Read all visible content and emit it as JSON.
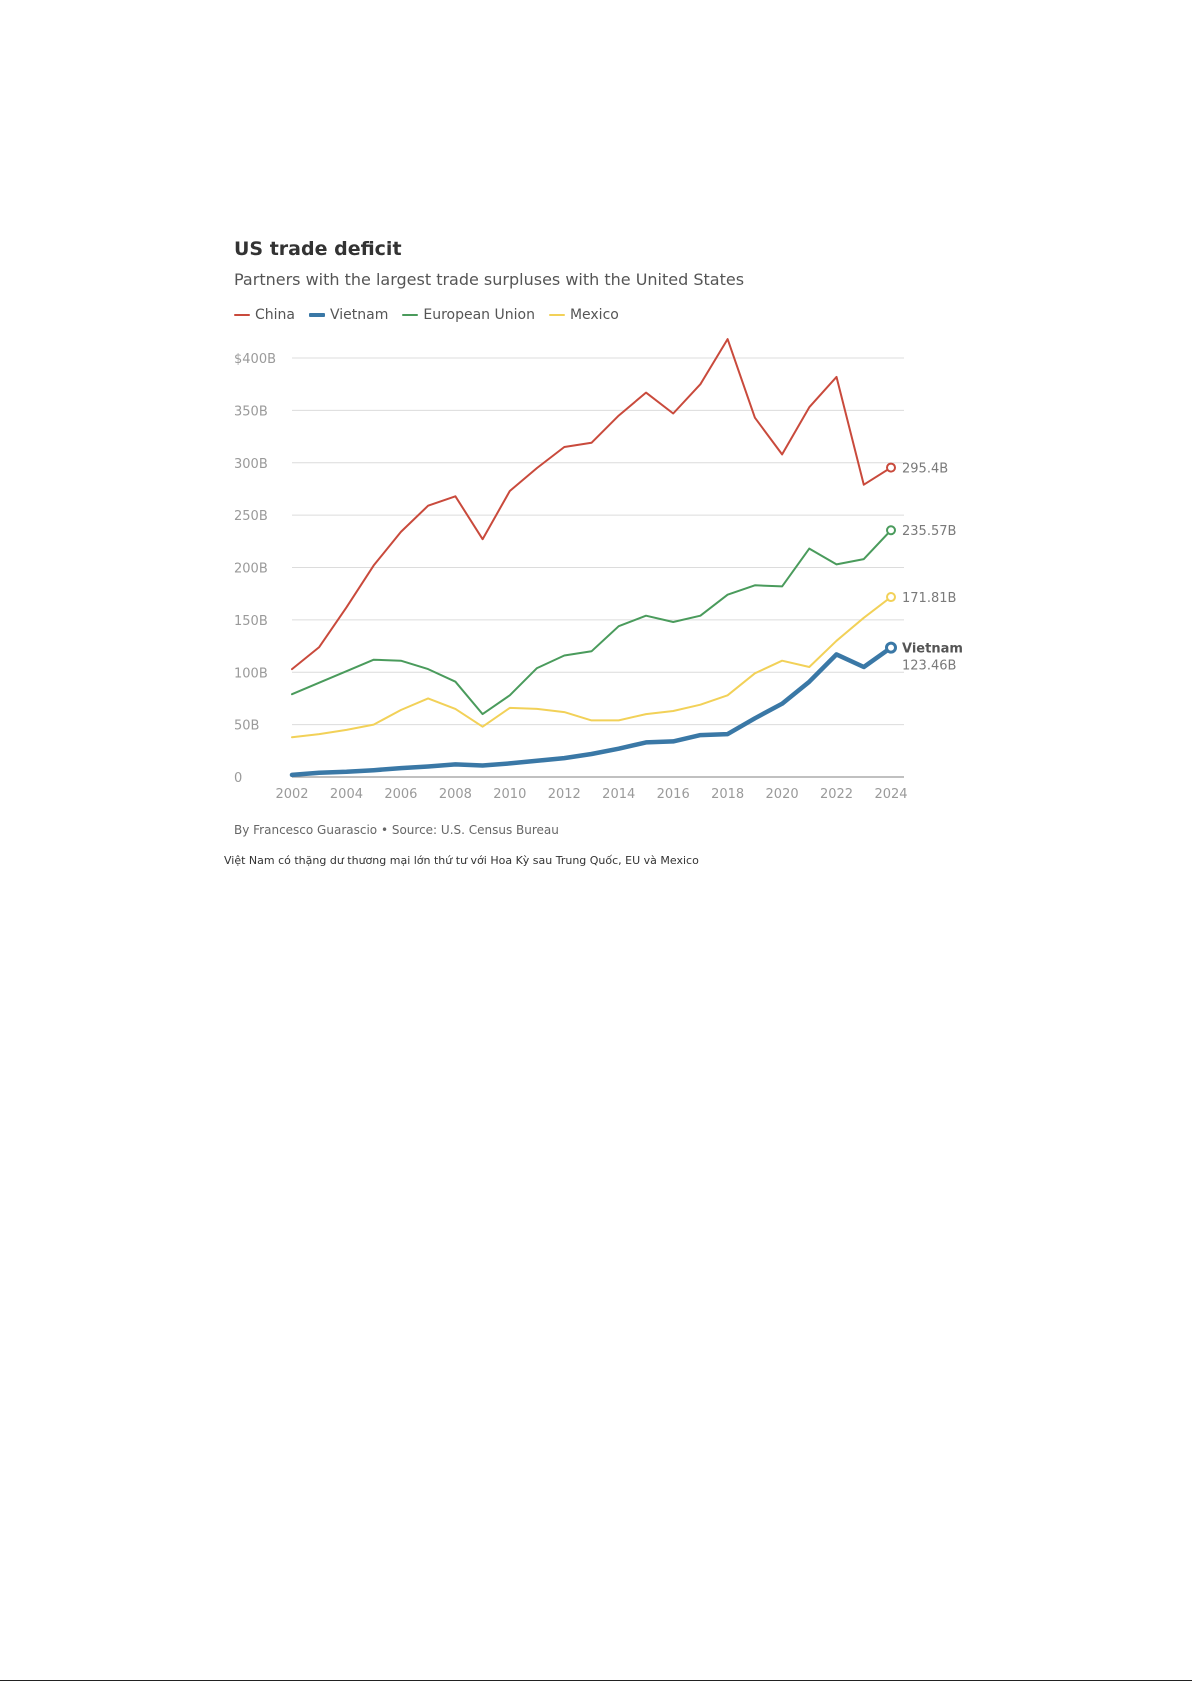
{
  "chart_data": {
    "type": "line",
    "title": "US trade deficit",
    "subtitle": "Partners with the largest trade surpluses with the United States",
    "x": [
      2002,
      2003,
      2004,
      2005,
      2006,
      2007,
      2008,
      2009,
      2010,
      2011,
      2012,
      2013,
      2014,
      2015,
      2016,
      2017,
      2018,
      2019,
      2020,
      2021,
      2022,
      2023,
      2024
    ],
    "x_ticks": [
      "2002",
      "2004",
      "2006",
      "2008",
      "2010",
      "2012",
      "2014",
      "2016",
      "2018",
      "2020",
      "2022",
      "2024"
    ],
    "y_ticks": [
      {
        "value": 0,
        "label": "0"
      },
      {
        "value": 50,
        "label": "50B"
      },
      {
        "value": 100,
        "label": "100B"
      },
      {
        "value": 150,
        "label": "150B"
      },
      {
        "value": 200,
        "label": "200B"
      },
      {
        "value": 250,
        "label": "250B"
      },
      {
        "value": 300,
        "label": "300B"
      },
      {
        "value": 350,
        "label": "350B"
      },
      {
        "value": 400,
        "label": "$400B"
      }
    ],
    "ylim": [
      0,
      420
    ],
    "xlim": [
      2002,
      2024
    ],
    "grid": true,
    "legend_position": "top-left",
    "series": [
      {
        "name": "China",
        "color": "#c94a3c",
        "thick": false,
        "values": [
          103,
          124,
          162,
          202,
          234,
          259,
          268,
          227,
          273,
          295,
          315,
          319,
          345,
          367,
          347,
          375,
          418,
          343,
          308,
          353,
          382,
          279,
          295.4
        ],
        "end_label": "295.4B",
        "end_name": ""
      },
      {
        "name": "Vietnam",
        "color": "#3a78a6",
        "thick": true,
        "values": [
          2,
          4,
          5,
          6.5,
          8.5,
          10,
          12,
          11,
          13,
          15.5,
          18,
          22,
          27,
          33,
          34,
          40,
          41,
          56,
          70,
          91,
          117,
          105,
          123.46
        ],
        "end_label": "123.46B",
        "end_name": "Vietnam"
      },
      {
        "name": "European Union",
        "color": "#4a9b5c",
        "thick": false,
        "values": [
          79,
          90,
          101,
          112,
          111,
          103,
          91,
          60,
          78,
          104,
          116,
          120,
          144,
          154,
          148,
          154,
          174,
          183,
          182,
          218,
          203,
          208,
          235.57
        ],
        "end_label": "235.57B",
        "end_name": ""
      },
      {
        "name": "Mexico",
        "color": "#f2d158",
        "thick": false,
        "values": [
          38,
          41,
          45,
          50,
          64,
          75,
          65,
          48,
          66,
          65,
          62,
          54,
          54,
          60,
          63,
          69,
          78,
          99,
          111,
          105,
          130,
          152,
          171.81
        ],
        "end_label": "171.81B",
        "end_name": ""
      }
    ],
    "byline": "By Francesco Guarascio • Source: U.S. Census Bureau"
  },
  "caption": "Việt Nam có thặng dư thương mại lớn thứ tư với Hoa Kỳ sau Trung Quốc, EU và Mexico"
}
